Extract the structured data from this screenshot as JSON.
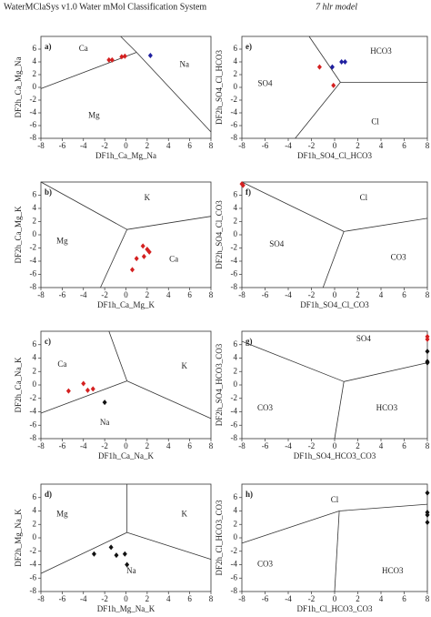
{
  "header": {
    "title": "WaterMClaSys v1.0 Water mMol Classification System",
    "subtitle": "7 hlr model"
  },
  "chart_data": [
    {
      "type": "scatter",
      "label": "a)",
      "xlabel": "DF1h_Ca_Mg_Na",
      "ylabel": "DF2h_Ca_Mg_Na",
      "xlim": [
        -8,
        8
      ],
      "ylim": [
        -8,
        8
      ],
      "xticks": [
        -8,
        -6,
        -4,
        -2,
        0,
        2,
        4,
        6,
        8
      ],
      "yticks": [
        -8,
        -6,
        -4,
        -2,
        0,
        2,
        4,
        6
      ],
      "regions": [
        "Ca",
        "Na",
        "Mg"
      ],
      "boundaries": [
        {
          "x": [
            1.0,
            -8
          ],
          "y": [
            5.5,
            -0.2
          ]
        },
        {
          "x": [
            1.0,
            -0.5
          ],
          "y": [
            5.5,
            8
          ]
        },
        {
          "x": [
            1.0,
            8
          ],
          "y": [
            5.5,
            -7
          ]
        }
      ],
      "series": [
        {
          "color": "#d42020",
          "x": [
            -1.6,
            -1.3,
            -0.4,
            -0.1
          ],
          "y": [
            4.3,
            4.3,
            4.8,
            4.9
          ]
        },
        {
          "color": "#1f1fa0",
          "x": [
            2.3
          ],
          "y": [
            5.0
          ]
        }
      ]
    },
    {
      "type": "scatter",
      "label": "e)",
      "xlabel": "DF1h_SO4_Cl_HCO3",
      "ylabel": "DF2h_SO4_Cl_HCO3",
      "xlim": [
        -8,
        8
      ],
      "ylim": [
        -8,
        8
      ],
      "xticks": [
        -8,
        -6,
        -4,
        -2,
        0,
        2,
        4,
        6,
        8
      ],
      "yticks": [
        -8,
        -6,
        -4,
        -2,
        0,
        2,
        4,
        6
      ],
      "regions": [
        "HCO3",
        "SO4",
        "Cl"
      ],
      "boundaries": [
        {
          "x": [
            0.5,
            -2.2
          ],
          "y": [
            0.8,
            8
          ]
        },
        {
          "x": [
            0.5,
            8
          ],
          "y": [
            0.8,
            0.8
          ]
        },
        {
          "x": [
            0.5,
            -3.4
          ],
          "y": [
            0.8,
            -8
          ]
        }
      ],
      "series": [
        {
          "color": "#d42020",
          "x": [
            -1.3,
            -0.1
          ],
          "y": [
            3.2,
            0.3
          ]
        },
        {
          "color": "#1f1fa0",
          "x": [
            -0.2,
            0.6,
            0.9
          ],
          "y": [
            3.2,
            4.0,
            4.0
          ]
        }
      ]
    },
    {
      "type": "scatter",
      "label": "b)",
      "xlabel": "DF1h_Ca_Mg_K",
      "ylabel": "DF2h_Ca_Mg_K",
      "xlim": [
        -8,
        8
      ],
      "ylim": [
        -8,
        8
      ],
      "xticks": [
        -8,
        -6,
        -4,
        -2,
        0,
        2,
        4,
        6,
        8
      ],
      "yticks": [
        -8,
        -6,
        -4,
        -2,
        0,
        2,
        4,
        6
      ],
      "regions": [
        "K",
        "Mg",
        "Ca"
      ],
      "boundaries": [
        {
          "x": [
            0.1,
            -8
          ],
          "y": [
            0.8,
            8
          ]
        },
        {
          "x": [
            0.1,
            8
          ],
          "y": [
            0.8,
            2.8
          ]
        },
        {
          "x": [
            0.1,
            -2.4
          ],
          "y": [
            0.8,
            -8
          ]
        }
      ],
      "series": [
        {
          "color": "#d42020",
          "x": [
            1.6,
            2.2,
            1.7,
            1.0,
            0.6,
            2.0
          ],
          "y": [
            -1.7,
            -2.6,
            -3.3,
            -3.6,
            -5.3,
            -2.2
          ]
        }
      ]
    },
    {
      "type": "scatter",
      "label": "f)",
      "xlabel": "DF1h_SO4_Cl_CO3",
      "ylabel": "DF2h_SO4_Cl_CO3",
      "xlim": [
        -8,
        8
      ],
      "ylim": [
        -8,
        8
      ],
      "xticks": [
        -8,
        -6,
        -4,
        -2,
        0,
        2,
        4,
        6,
        8
      ],
      "yticks": [
        -8,
        -6,
        -4,
        -2,
        0,
        2,
        4,
        6
      ],
      "regions": [
        "Cl",
        "SO4",
        "CO3"
      ],
      "boundaries": [
        {
          "x": [
            0.8,
            -8
          ],
          "y": [
            0.5,
            8
          ]
        },
        {
          "x": [
            0.8,
            8
          ],
          "y": [
            0.5,
            2.5
          ]
        },
        {
          "x": [
            0.8,
            -1
          ],
          "y": [
            0.5,
            -8
          ]
        }
      ],
      "series": [
        {
          "color": "#d42020",
          "x": [
            -8,
            -7.9
          ],
          "y": [
            7.7,
            7.5
          ]
        }
      ]
    },
    {
      "type": "scatter",
      "label": "c)",
      "xlabel": "DF1h_Ca_Na_K",
      "ylabel": "DF2h_Ca_Na_K",
      "xlim": [
        -8,
        8
      ],
      "ylim": [
        -8,
        8
      ],
      "xticks": [
        -8,
        -6,
        -4,
        -2,
        0,
        2,
        4,
        6,
        8
      ],
      "yticks": [
        -8,
        -6,
        -4,
        -2,
        0,
        2,
        4,
        6
      ],
      "regions": [
        "Ca",
        "K",
        "Na"
      ],
      "boundaries": [
        {
          "x": [
            0.1,
            -1.6
          ],
          "y": [
            0.6,
            8
          ]
        },
        {
          "x": [
            0.1,
            -8
          ],
          "y": [
            0.6,
            -4.2
          ]
        },
        {
          "x": [
            0.1,
            8
          ],
          "y": [
            0.6,
            -5
          ]
        }
      ],
      "series": [
        {
          "color": "#d42020",
          "x": [
            -5.4,
            -4,
            -3.6,
            -3.1
          ],
          "y": [
            -0.9,
            0.2,
            -0.8,
            -0.6
          ]
        },
        {
          "color": "#111111",
          "x": [
            -2
          ],
          "y": [
            -2.6
          ]
        }
      ]
    },
    {
      "type": "scatter",
      "label": "g)",
      "xlabel": "DF1h_SO4_HCO3_CO3",
      "ylabel": "DF2h_SO4_HCO3_CO3",
      "xlim": [
        -8,
        8
      ],
      "ylim": [
        -8,
        8
      ],
      "xticks": [
        -8,
        -6,
        -4,
        -2,
        0,
        2,
        4,
        6,
        8
      ],
      "yticks": [
        -8,
        -6,
        -4,
        -2,
        0,
        2,
        4,
        6
      ],
      "regions": [
        "SO4",
        "CO3",
        "HCO3"
      ],
      "boundaries": [
        {
          "x": [
            0.8,
            -8
          ],
          "y": [
            0.5,
            6.5
          ]
        },
        {
          "x": [
            0.8,
            8
          ],
          "y": [
            0.5,
            3.3
          ]
        },
        {
          "x": [
            0.8,
            0
          ],
          "y": [
            0.5,
            -8
          ]
        }
      ],
      "series": [
        {
          "color": "#d42020",
          "x": [
            8,
            8
          ],
          "y": [
            7.2,
            6.8
          ]
        },
        {
          "color": "#111111",
          "x": [
            8,
            8,
            8
          ],
          "y": [
            5,
            3.5,
            3.3
          ]
        }
      ]
    },
    {
      "type": "scatter",
      "label": "d)",
      "xlabel": "DF1h_Mg_Na_K",
      "ylabel": "DF2h_Mg_Na_K",
      "xlim": [
        -8,
        8
      ],
      "ylim": [
        -8,
        8
      ],
      "xticks": [
        -8,
        -6,
        -4,
        -2,
        0,
        2,
        4,
        6,
        8
      ],
      "yticks": [
        -8,
        -6,
        -4,
        -2,
        0,
        2,
        4,
        6
      ],
      "regions": [
        "Mg",
        "K",
        "Na"
      ],
      "boundaries": [
        {
          "x": [
            0.1,
            0.1
          ],
          "y": [
            0.8,
            8
          ]
        },
        {
          "x": [
            0.1,
            -8
          ],
          "y": [
            0.8,
            -5.3
          ]
        },
        {
          "x": [
            0.1,
            8
          ],
          "y": [
            0.8,
            -3.2
          ]
        }
      ],
      "series": [
        {
          "color": "#111111",
          "x": [
            -3,
            -1.4,
            -0.9,
            -0.1,
            0.1
          ],
          "y": [
            -2.4,
            -1.4,
            -2.6,
            -2.4,
            -4.0
          ]
        }
      ]
    },
    {
      "type": "scatter",
      "label": "h)",
      "xlabel": "DF1h_Cl_HCO3_CO3",
      "ylabel": "DF2h_Cl_HCO3_CO3",
      "xlim": [
        -8,
        8
      ],
      "ylim": [
        -8,
        8
      ],
      "xticks": [
        -8,
        -6,
        -4,
        -2,
        0,
        2,
        4,
        6,
        8
      ],
      "yticks": [
        -8,
        -6,
        -4,
        -2,
        0,
        2,
        4,
        6
      ],
      "regions": [
        "Cl",
        "CO3",
        "HCO3"
      ],
      "boundaries": [
        {
          "x": [
            0.4,
            -8
          ],
          "y": [
            4.0,
            -0.8
          ]
        },
        {
          "x": [
            0.4,
            8
          ],
          "y": [
            4.0,
            5.0
          ]
        },
        {
          "x": [
            0.4,
            0
          ],
          "y": [
            4.0,
            -8
          ]
        }
      ],
      "series": [
        {
          "color": "#111111",
          "x": [
            8,
            8,
            8,
            8
          ],
          "y": [
            6.7,
            3.8,
            3.4,
            2.3
          ]
        }
      ]
    }
  ]
}
